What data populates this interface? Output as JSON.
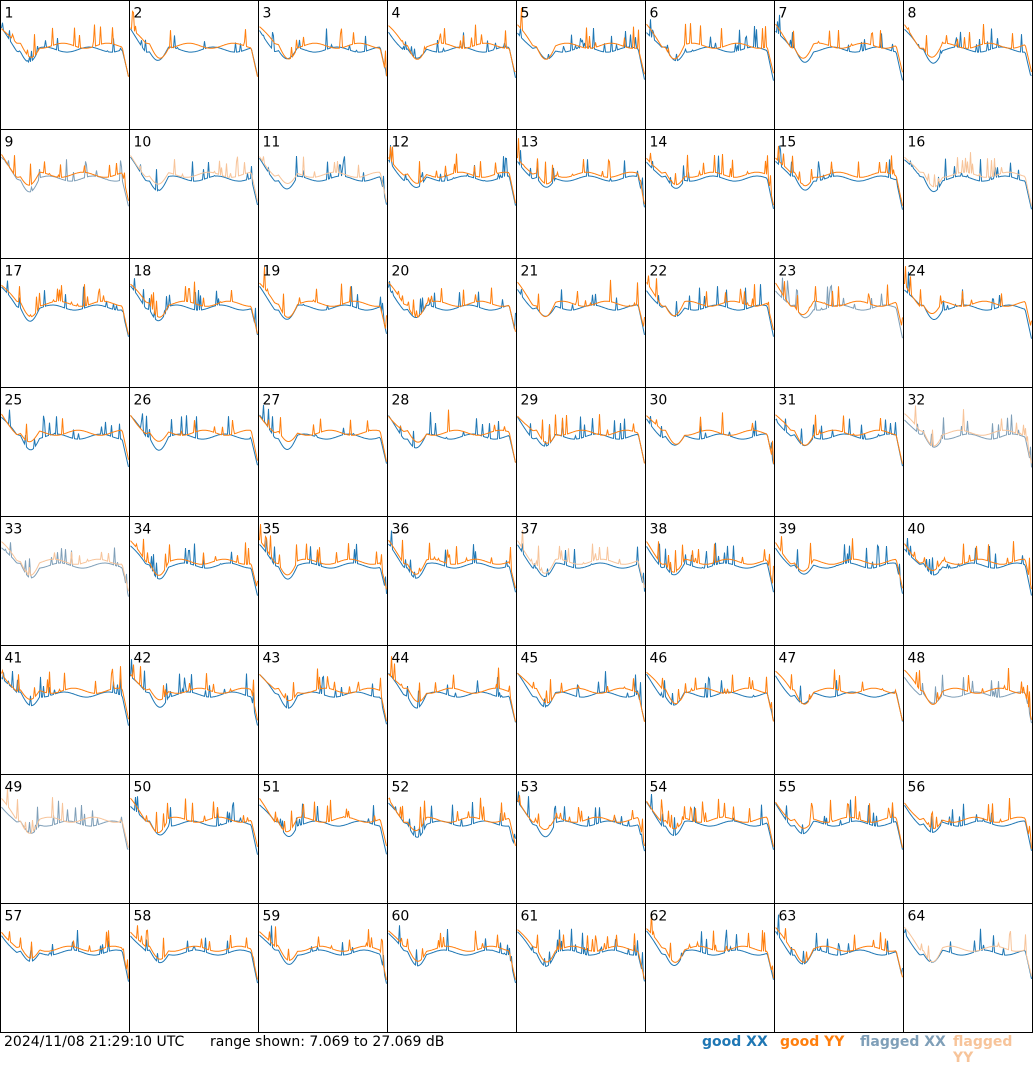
{
  "timestamp": "2024/11/08 21:29:10 UTC",
  "range_text": "range shown: 7.069 to 27.069 dB",
  "legend": {
    "good_xx": "good XX",
    "good_yy": "good YY",
    "flagged_xx": "flagged XX",
    "flagged_yy": "flagged YY"
  },
  "colors": {
    "good_xx": "#1f77b4",
    "good_yy": "#ff7f0e",
    "flagged_xx": "#7f9fb8",
    "flagged_yy": "#f7c49a",
    "border": "#000000",
    "background": "#ffffff"
  },
  "chart_data": {
    "type": "line",
    "grid": {
      "rows": 8,
      "cols": 8
    },
    "y_range_db": [
      7.069,
      27.069
    ],
    "panel_labels": [
      "1",
      "2",
      "3",
      "4",
      "5",
      "6",
      "7",
      "8",
      "9",
      "10",
      "11",
      "12",
      "13",
      "14",
      "15",
      "16",
      "17",
      "18",
      "19",
      "20",
      "21",
      "22",
      "23",
      "24",
      "25",
      "26",
      "27",
      "28",
      "29",
      "30",
      "31",
      "32",
      "33",
      "34",
      "35",
      "36",
      "37",
      "38",
      "39",
      "40",
      "41",
      "42",
      "43",
      "44",
      "45",
      "46",
      "47",
      "48",
      "49",
      "50",
      "51",
      "52",
      "53",
      "54",
      "55",
      "56",
      "57",
      "58",
      "59",
      "60",
      "61",
      "62",
      "63",
      "64"
    ],
    "flagged_xx_panels": [
      9,
      23,
      32,
      33,
      48,
      49
    ],
    "flagged_yy_panels": [
      10,
      11,
      16,
      32,
      33,
      37,
      49,
      64
    ],
    "baseline": {
      "level": 19.5,
      "edge_high": 22.5,
      "band_drop": 15.0,
      "dip": 16.0,
      "spike_amplitude": 3.5
    }
  }
}
